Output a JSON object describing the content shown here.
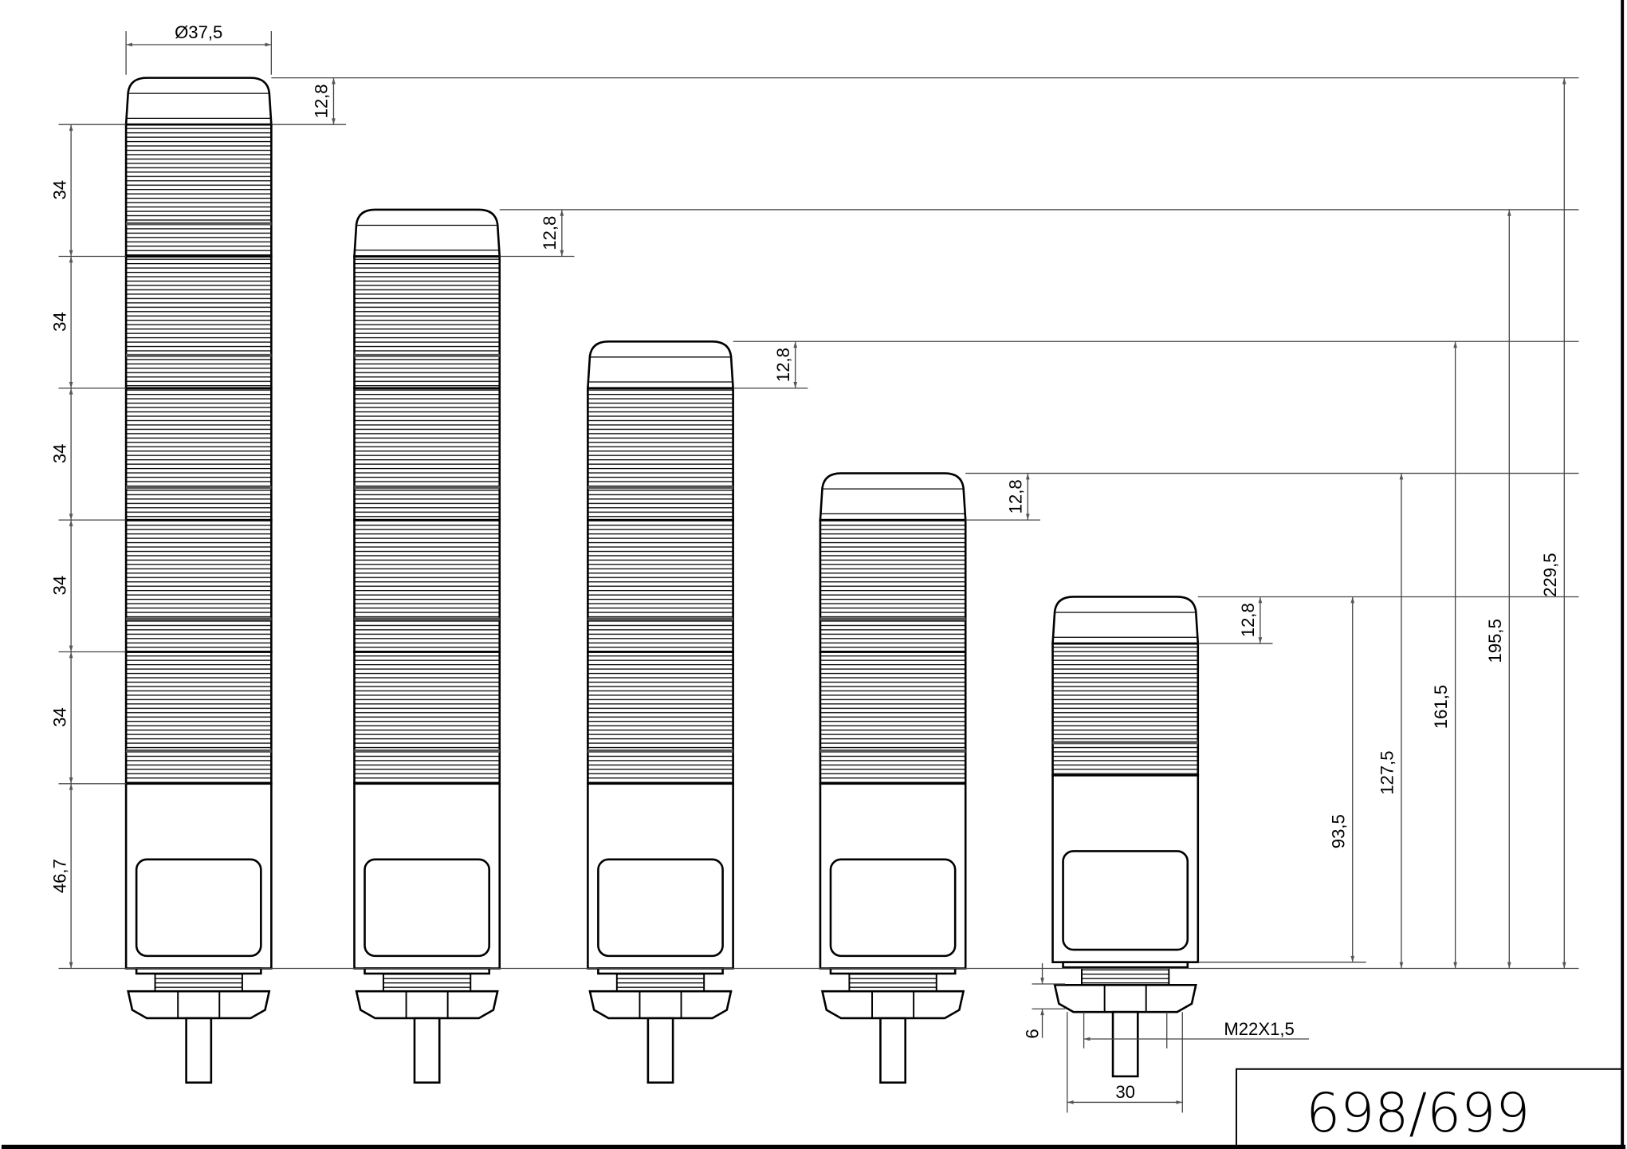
{
  "drawing": {
    "title_block": {
      "number": "698/699"
    },
    "diameter_label": "Ø37,5",
    "cap_height_label": "12,8",
    "segment_height_label": "34",
    "base_height_label": "46,7",
    "thread_label": "M22X1,5",
    "nut_label": "6",
    "nut_width_label": "30",
    "overall_heights": [
      "229,5",
      "195,5",
      "161,5",
      "127,5",
      "93,5"
    ],
    "towers": [
      {
        "segments": 5
      },
      {
        "segments": 4
      },
      {
        "segments": 3
      },
      {
        "segments": 2
      },
      {
        "segments": 1
      }
    ]
  }
}
